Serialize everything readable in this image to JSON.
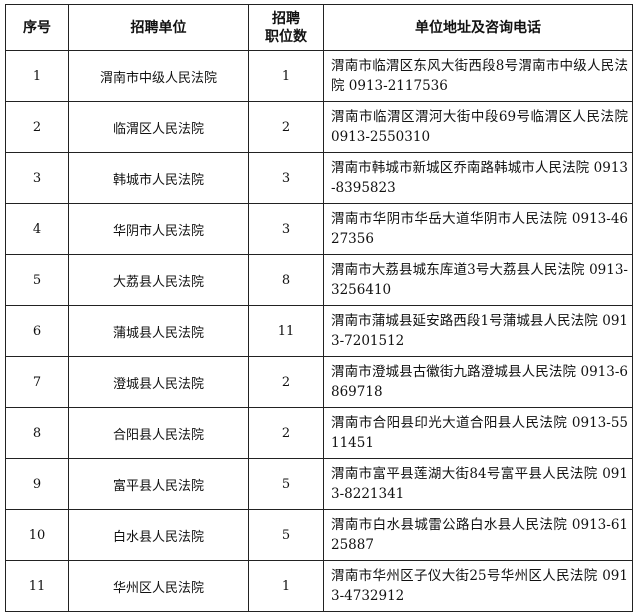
{
  "headers": {
    "index": "序号",
    "unit": "招聘单位",
    "positions_line1": "招聘",
    "positions_line2": "职位数",
    "address": "单位地址及咨询电话"
  },
  "rows": [
    {
      "index": "1",
      "unit": "渭南市中级人民法院",
      "positions": "1",
      "address": "渭南市临渭区东风大街西段8号渭南市中级人民法院 0913-2117536"
    },
    {
      "index": "2",
      "unit": "临渭区人民法院",
      "positions": "2",
      "address": "渭南市临渭区渭河大街中段69号临渭区人民法院  0913-2550310"
    },
    {
      "index": "3",
      "unit": "韩城市人民法院",
      "positions": "3",
      "address": "渭南市韩城市新城区乔南路韩城市人民法院  0913-8395823"
    },
    {
      "index": "4",
      "unit": "华阴市人民法院",
      "positions": "3",
      "address": "渭南市华阴市华岳大道华阴市人民法院 0913-4627356"
    },
    {
      "index": "5",
      "unit": "大荔县人民法院",
      "positions": "8",
      "address": "渭南市大荔县城东库道3号大荔县人民法院 0913-3256410"
    },
    {
      "index": "6",
      "unit": "蒲城县人民法院",
      "positions": "11",
      "address": "渭南市蒲城县延安路西段1号蒲城县人民法院 0913-7201512"
    },
    {
      "index": "7",
      "unit": "澄城县人民法院",
      "positions": "2",
      "address": "渭南市澄城县古徽街九路澄城县人民法院 0913-6869718"
    },
    {
      "index": "8",
      "unit": "合阳县人民法院",
      "positions": "2",
      "address": "渭南市合阳县印光大道合阳县人民法院 0913-5511451"
    },
    {
      "index": "9",
      "unit": "富平县人民法院",
      "positions": "5",
      "address": "渭南市富平县莲湖大街84号富平县人民法院 0913-8221341"
    },
    {
      "index": "10",
      "unit": "白水县人民法院",
      "positions": "5",
      "address": "渭南市白水县城雷公路白水县人民法院 0913-6125887"
    },
    {
      "index": "11",
      "unit": "华州区人民法院",
      "positions": "1",
      "address": "渭南市华州区子仪大街25号华州区人民法院 0913-4732912"
    }
  ]
}
